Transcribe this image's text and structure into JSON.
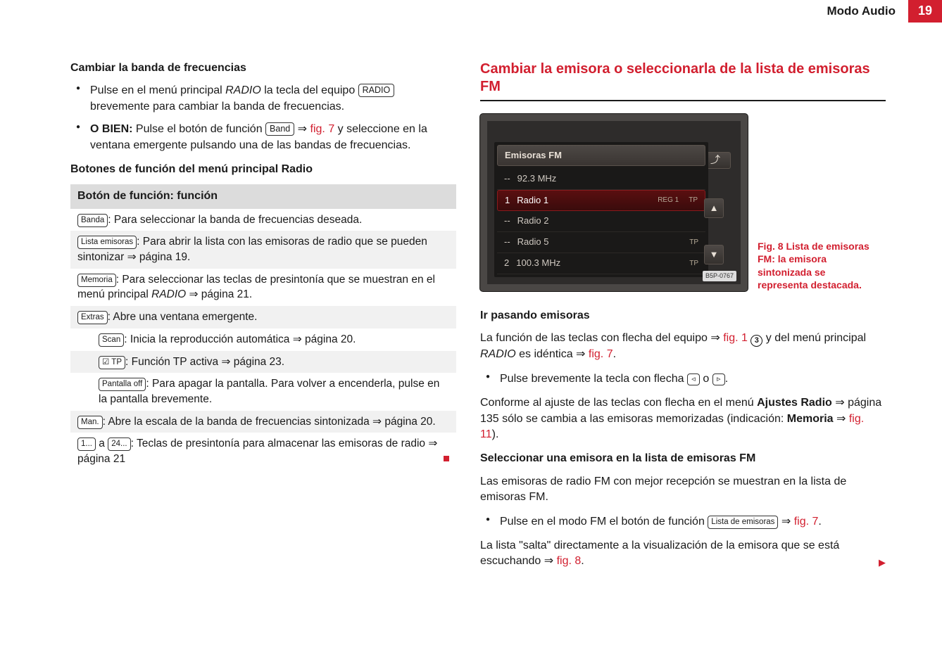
{
  "header": {
    "section": "Modo Audio",
    "page": "19"
  },
  "left": {
    "h1": "Cambiar la banda de frecuencias",
    "p1a": "Pulse en el menú principal ",
    "p1b": "RADIO",
    "p1c": " la tecla del equipo ",
    "btn_radio": "RADIO",
    "p1d": " brevemente para cambiar la banda de frecuencias.",
    "p2a": "O BIEN:",
    "p2b": " Pulse el botón de función ",
    "btn_band": "Band",
    "p2c": " ⇒ ",
    "p2d": "fig. 7",
    "p2e": " y seleccione en la ventana emergente pulsando una de las bandas de frecuencias.",
    "h2": "Botones de función del menú principal Radio",
    "table": {
      "header": "Botón de función: función",
      "r1_btn": "Banda",
      "r1_txt": ": Para seleccionar la banda de frecuencias deseada.",
      "r2_btn": "Lista emisoras",
      "r2_txt": ": Para abrir la lista con las emisoras de radio que se pueden sintonizar ⇒ página 19.",
      "r3_btn": "Memoria",
      "r3_txt": ": Para seleccionar las teclas de presintonía que se muestran en el menú principal ",
      "r3_ital": "RADIO",
      "r3_txt2": " ⇒ página 21.",
      "r4_btn": "Extras",
      "r4_txt": ": Abre una ventana emergente.",
      "r4a_btn": "Scan",
      "r4a_txt": ": Inicia la reproducción automática ⇒ página 20.",
      "r4b_btn": "☑ TP",
      "r4b_txt": ": Función TP activa ⇒ página 23.",
      "r4c_btn": "Pantalla off",
      "r4c_txt": ": Para apagar la pantalla. Para volver a encenderla, pulse en la pantalla brevemente.",
      "r5_btn": "Man.",
      "r5_txt": ": Abre la escala de la banda de frecuencias sintonizada ⇒ página 20.",
      "r6_btn1": "1...",
      "r6_mid": " a ",
      "r6_btn2": "24...",
      "r6_txt": ": Teclas de presintonía para almacenar las emisoras de radio ⇒ página 21"
    }
  },
  "right": {
    "heading": "Cambiar la emisora o seleccionarla de la lista de emisoras FM",
    "device": {
      "title": "Emisoras FM",
      "rows": [
        {
          "pre": "--",
          "label": "92.3 MHz",
          "reg": "",
          "tp": false,
          "hl": false
        },
        {
          "pre": "1",
          "label": "Radio 1",
          "reg": "REG 1",
          "tp": true,
          "hl": true
        },
        {
          "pre": "--",
          "label": "Radio 2",
          "reg": "",
          "tp": false,
          "hl": false
        },
        {
          "pre": "--",
          "label": "Radio 5",
          "reg": "",
          "tp": true,
          "hl": false
        },
        {
          "pre": "2",
          "label": "100.3 MHz",
          "reg": "",
          "tp": true,
          "hl": false
        }
      ],
      "footer_id": "B5P-0767"
    },
    "fig_caption": "Fig. 8  Lista de emisoras FM: la emisora sintonizada se representa destacada.",
    "h_ir": "Ir pasando emisoras",
    "p_ir_a": "La función de las teclas con flecha del equipo ⇒ ",
    "p_ir_b": "fig. 1",
    "p_ir_circ": "3",
    "p_ir_c": " y del menú principal ",
    "p_ir_d": "RADIO",
    "p_ir_e": " es idéntica ⇒ ",
    "p_ir_f": "fig. 7",
    "p_ir_g": ".",
    "bul1": "Pulse brevemente la tecla con flecha ",
    "bul1_mid": " o ",
    "bul1_end": ".",
    "p2a": "Conforme al ajuste de las teclas con flecha en el menú ",
    "p2b": "Ajustes Radio",
    "p2c": " ⇒ página 135 sólo se cambia a las emisoras memorizadas (indicación: ",
    "p2d": "Memoria",
    "p2e": " ⇒ ",
    "p2f": "fig. 11",
    "p2g": ").",
    "h_sel": "Seleccionar una emisora en la lista de emisoras FM",
    "p_sel": "Las emisoras de radio FM con mejor recepción se muestran en la lista de emisoras FM.",
    "bul2a": "Pulse en el modo FM el botón de función ",
    "bul2_btn": "Lista de emisoras",
    "bul2b": " ⇒ ",
    "bul2c": "fig. 7",
    "bul2d": ".",
    "p_last_a": "La lista \"salta\" directamente a la visualización de la emisora que se está escuchando ⇒ ",
    "p_last_b": "fig. 8",
    "p_last_c": "."
  }
}
